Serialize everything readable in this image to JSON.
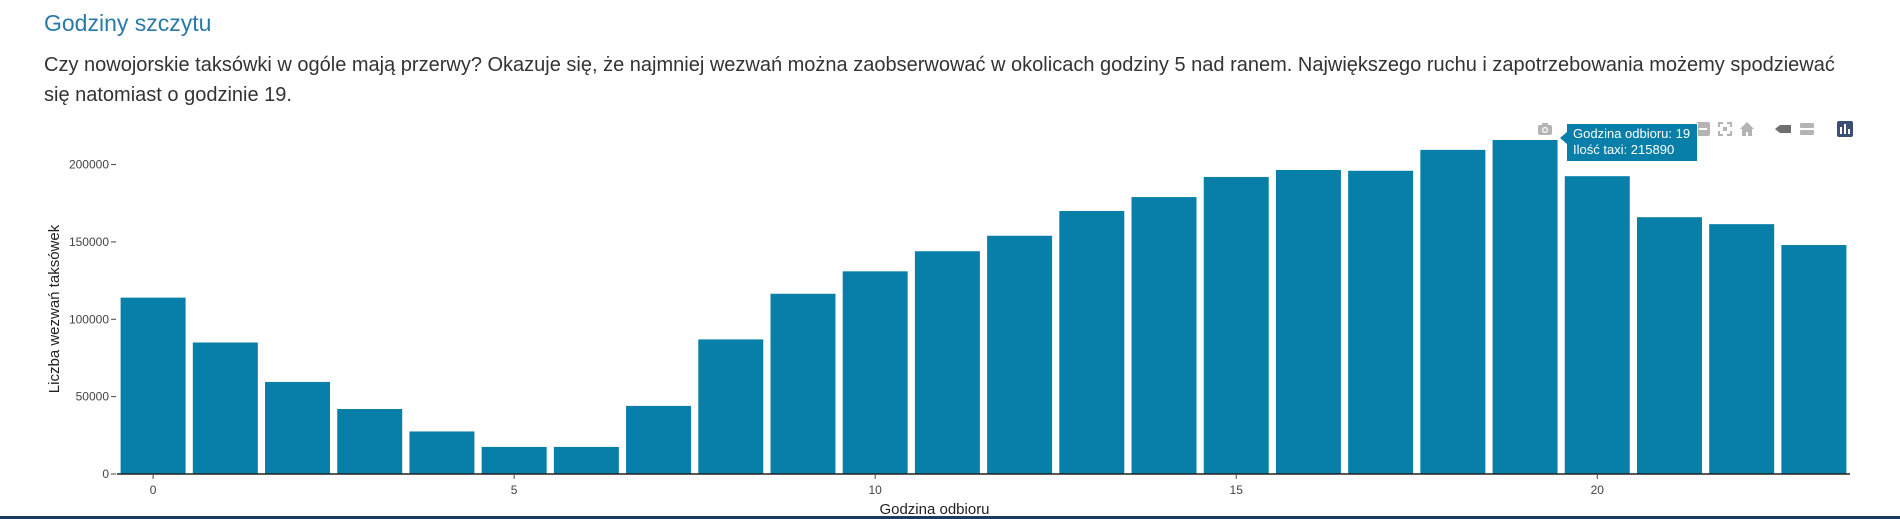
{
  "section": {
    "title": "Godziny szczytu",
    "intro": "Czy nowojorskie taksówki w ogóle mają przerwy? Okazuje się, że najmniej wezwań można zaobserwować w okolicach godziny 5 nad ranem. Największego ruchu i zapotrzebowania możemy spodziewać się natomiast o godzinie 19."
  },
  "modebar": {
    "icons": [
      "camera-icon",
      "zoom-in-icon",
      "zoom-out-icon",
      "autoscale-icon",
      "home-icon",
      "spike-lines-icon",
      "compare-hover-icon",
      "plotly-logo-icon"
    ]
  },
  "tooltip": {
    "line1": "Godzina odbioru: 19",
    "line2": "Ilość taxi: 215890"
  },
  "colors": {
    "bar": "#077fa8",
    "tooltip_bg": "#077fa8",
    "title": "#2a7aa8",
    "text": "#333333"
  },
  "chart_data": {
    "type": "bar",
    "x": [
      0,
      1,
      2,
      3,
      4,
      5,
      6,
      7,
      8,
      9,
      10,
      11,
      12,
      13,
      14,
      15,
      16,
      17,
      18,
      19,
      20,
      21,
      22,
      23
    ],
    "values": [
      114000,
      85000,
      59500,
      42000,
      27500,
      17500,
      17500,
      44000,
      87000,
      116500,
      131000,
      144000,
      154000,
      170000,
      179000,
      192000,
      196500,
      196000,
      209500,
      215890,
      192500,
      166000,
      161500,
      148000
    ],
    "xlabel": "Godzina odbioru",
    "ylabel": "Liczba wezwań taksówek",
    "xlim": [
      -0.5,
      23.5
    ],
    "ylim": [
      0,
      215890
    ],
    "yticks": [
      0,
      50000,
      100000,
      150000,
      200000
    ],
    "ytick_labels": [
      "0",
      "50000",
      "100000",
      "150000",
      "200000"
    ],
    "xticks": [
      0,
      5,
      10,
      15,
      20
    ],
    "xtick_labels": [
      "0",
      "5",
      "10",
      "15",
      "20"
    ],
    "grid": false,
    "legend": "none",
    "highlighted_x": 19
  }
}
